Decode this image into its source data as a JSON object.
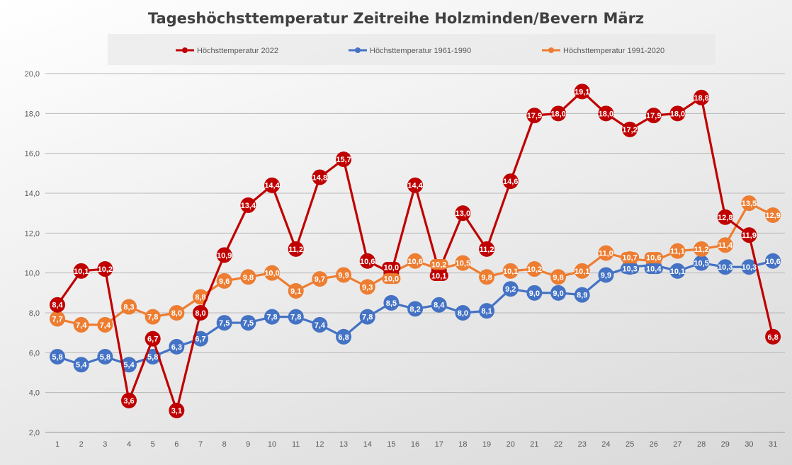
{
  "chart_data": {
    "type": "line",
    "title": "Tageshöchsttemperatur Zeitreihe Holzminden/Bevern März",
    "xlabel": "",
    "ylabel": "",
    "ylim": [
      2,
      20
    ],
    "yticks": [
      "2,0",
      "4,0",
      "6,0",
      "8,0",
      "10,0",
      "12,0",
      "14,0",
      "16,0",
      "18,0",
      "20,0"
    ],
    "grid": true,
    "legend": "top",
    "categories": [
      "1",
      "2",
      "3",
      "4",
      "5",
      "6",
      "7",
      "8",
      "9",
      "10",
      "11",
      "12",
      "13",
      "14",
      "15",
      "16",
      "17",
      "18",
      "19",
      "20",
      "21",
      "22",
      "23",
      "24",
      "25",
      "26",
      "27",
      "28",
      "29",
      "30",
      "31"
    ],
    "series": [
      {
        "name": "Höchsttemperatur 2022",
        "color": "#c00000",
        "values": [
          8.4,
          10.1,
          10.2,
          3.6,
          6.7,
          3.1,
          8.0,
          10.9,
          13.4,
          14.4,
          11.2,
          14.8,
          15.7,
          10.6,
          10.0,
          14.4,
          10.1,
          13.0,
          11.2,
          14.6,
          17.9,
          18.0,
          19.1,
          18.0,
          17.2,
          17.9,
          18.0,
          18.8,
          12.8,
          11.9,
          6.8
        ]
      },
      {
        "name": "Höchsttemperatur 1961-1990",
        "color": "#4472c4",
        "values": [
          5.8,
          5.4,
          5.8,
          5.4,
          5.8,
          6.3,
          6.7,
          7.5,
          7.5,
          7.8,
          7.8,
          7.4,
          6.8,
          7.8,
          8.5,
          8.2,
          8.4,
          8.0,
          8.1,
          9.2,
          9.0,
          9.0,
          8.9,
          9.9,
          10.3,
          10.4,
          10.1,
          10.5,
          10.3,
          10.3,
          10.6
        ]
      },
      {
        "name": "Höchsttemperatur 1991-2020",
        "color": "#ed7d31",
        "values": [
          7.7,
          7.4,
          7.4,
          8.3,
          7.8,
          8.0,
          8.8,
          9.6,
          9.8,
          10.0,
          9.1,
          9.7,
          9.9,
          9.3,
          10.0,
          10.6,
          10.2,
          10.5,
          9.8,
          10.1,
          10.2,
          9.8,
          10.1,
          11.0,
          10.7,
          10.6,
          11.1,
          11.2,
          11.4,
          13.5,
          12.9
        ]
      }
    ]
  }
}
